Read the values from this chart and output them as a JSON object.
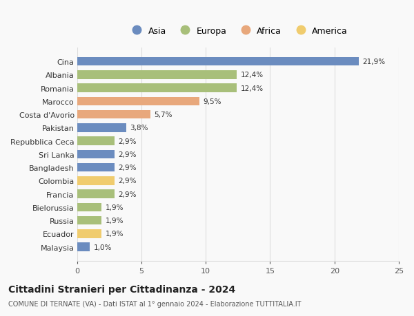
{
  "categories": [
    "Cina",
    "Albania",
    "Romania",
    "Marocco",
    "Costa d'Avorio",
    "Pakistan",
    "Repubblica Ceca",
    "Sri Lanka",
    "Bangladesh",
    "Colombia",
    "Francia",
    "Bielorussia",
    "Russia",
    "Ecuador",
    "Malaysia"
  ],
  "values": [
    21.9,
    12.4,
    12.4,
    9.5,
    5.7,
    3.8,
    2.9,
    2.9,
    2.9,
    2.9,
    2.9,
    1.9,
    1.9,
    1.9,
    1.0
  ],
  "labels": [
    "21,9%",
    "12,4%",
    "12,4%",
    "9,5%",
    "5,7%",
    "3,8%",
    "2,9%",
    "2,9%",
    "2,9%",
    "2,9%",
    "2,9%",
    "1,9%",
    "1,9%",
    "1,9%",
    "1,0%"
  ],
  "continents": [
    "Asia",
    "Europa",
    "Europa",
    "Africa",
    "Africa",
    "Asia",
    "Europa",
    "Asia",
    "Asia",
    "America",
    "Europa",
    "Europa",
    "Europa",
    "America",
    "Asia"
  ],
  "colors": {
    "Asia": "#6b8cbf",
    "Europa": "#a8bf7a",
    "Africa": "#e8a87c",
    "America": "#f0cc6e"
  },
  "legend_order": [
    "Asia",
    "Europa",
    "Africa",
    "America"
  ],
  "xlim": [
    0,
    25
  ],
  "xticks": [
    0,
    5,
    10,
    15,
    20,
    25
  ],
  "title": "Cittadini Stranieri per Cittadinanza - 2024",
  "subtitle": "COMUNE DI TERNATE (VA) - Dati ISTAT al 1° gennaio 2024 - Elaborazione TUTTITALIA.IT",
  "background_color": "#f9f9f9",
  "grid_color": "#dddddd",
  "bar_height": 0.65,
  "label_fontsize": 7.5,
  "ytick_fontsize": 8,
  "xtick_fontsize": 8,
  "legend_fontsize": 9,
  "title_fontsize": 10,
  "subtitle_fontsize": 7
}
